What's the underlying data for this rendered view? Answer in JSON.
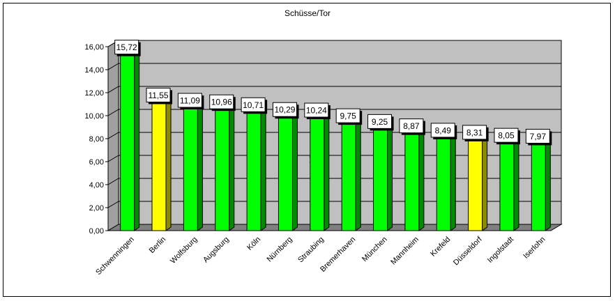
{
  "chart_data": {
    "type": "bar",
    "title": "Schüsse/Tor",
    "xlabel": "",
    "ylabel": "",
    "axis_hint": "y",
    "categories": [
      "Schwenningen",
      "Berlin",
      "Wolfsburg",
      "Augsburg",
      "Köln",
      "Nürnberg",
      "Straubing",
      "Bremerhaven",
      "München",
      "Mannheim",
      "Krefeld",
      "Düsseldorf",
      "Ingolstadt",
      "Iserlohn"
    ],
    "values": [
      15.72,
      11.55,
      11.09,
      10.96,
      10.71,
      10.29,
      10.24,
      9.75,
      9.25,
      8.87,
      8.49,
      8.31,
      8.05,
      7.97
    ],
    "value_labels": [
      "15,72",
      "11,55",
      "11,09",
      "10,96",
      "10,71",
      "10,29",
      "10,24",
      "9,75",
      "9,25",
      "8,87",
      "8,49",
      "8,31",
      "8,05",
      "7,97"
    ],
    "bar_colors": [
      "#00ff00",
      "#ffff00",
      "#00ff00",
      "#00ff00",
      "#00ff00",
      "#00ff00",
      "#00ff00",
      "#00ff00",
      "#00ff00",
      "#00ff00",
      "#00ff00",
      "#ffff00",
      "#00ff00",
      "#00ff00"
    ],
    "ylim": [
      0,
      16
    ],
    "y_ticks": [
      0,
      2,
      4,
      6,
      8,
      10,
      12,
      14,
      16
    ],
    "y_tick_labels": [
      "0,00",
      "2,00",
      "4,00",
      "6,00",
      "8,00",
      "10,00",
      "12,00",
      "14,00",
      "16,00"
    ],
    "grid": true,
    "style": "3d",
    "colors": {
      "back_wall": "#c0c0c0",
      "floor": "#808080",
      "gridline": "#000000"
    }
  }
}
